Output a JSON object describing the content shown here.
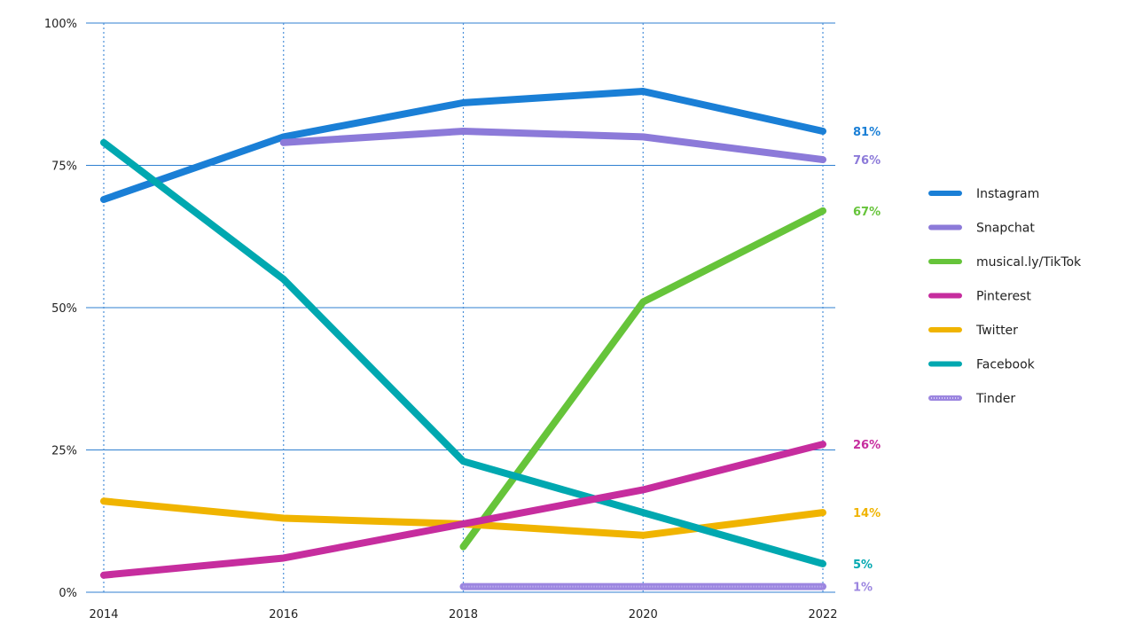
{
  "chart_data": {
    "type": "line",
    "title": "",
    "xlabel": "",
    "ylabel": "",
    "x": [
      2014,
      2016,
      2018,
      2020,
      2022
    ],
    "x_tick_labels": [
      "2014",
      "2016",
      "2018",
      "2020",
      "2022"
    ],
    "ylim": [
      0,
      100
    ],
    "y_ticks": [
      0,
      25,
      50,
      75,
      100
    ],
    "y_tick_labels": [
      "0%",
      "25%",
      "50%",
      "75%",
      "100%"
    ],
    "grid": "horizontal solid, vertical dotted",
    "legend_position": "right",
    "series": [
      {
        "name": "Instagram",
        "color": "#1a7fd6",
        "values": [
          69,
          80,
          86,
          88,
          81
        ],
        "end_label": "81%"
      },
      {
        "name": "Snapchat",
        "color": "#8c7ad9",
        "values": [
          null,
          79,
          81,
          80,
          76
        ],
        "end_label": "76%"
      },
      {
        "name": "musical.ly/TikTok",
        "color": "#66c43a",
        "values": [
          null,
          null,
          8,
          51,
          67
        ],
        "end_label": "67%"
      },
      {
        "name": "Pinterest",
        "color": "#c62d9e",
        "values": [
          3,
          6,
          12,
          18,
          26
        ],
        "end_label": "26%"
      },
      {
        "name": "Twitter",
        "color": "#f0b400",
        "values": [
          16,
          13,
          12,
          10,
          14
        ],
        "end_label": "14%"
      },
      {
        "name": "Facebook",
        "color": "#00a8b0",
        "values": [
          79,
          55,
          23,
          14,
          5
        ],
        "end_label": "5%"
      },
      {
        "name": "Tinder",
        "color": "#9c86e0",
        "dotted": true,
        "values": [
          null,
          null,
          1,
          1,
          1
        ],
        "end_label": "1%"
      }
    ]
  }
}
